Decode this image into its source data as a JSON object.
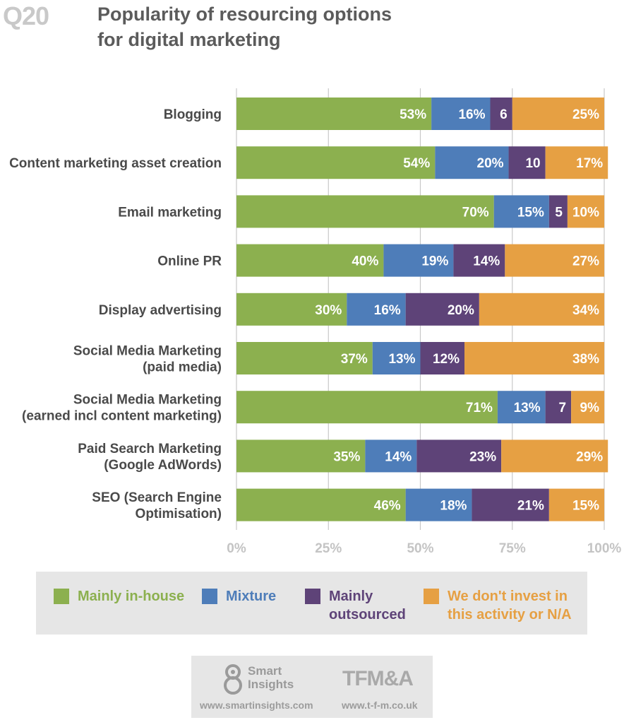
{
  "header": {
    "question_number": "Q20",
    "title_line1": "Popularity of resourcing options",
    "title_line2": "for digital marketing"
  },
  "chart_data": {
    "type": "bar",
    "orientation": "horizontal",
    "stacked": true,
    "categories": [
      [
        "Blogging"
      ],
      [
        "Content marketing asset creation"
      ],
      [
        "Email marketing"
      ],
      [
        "Online PR"
      ],
      [
        "Display advertising"
      ],
      [
        "Social Media Marketing",
        "(paid media)"
      ],
      [
        "Social Media Marketing",
        "(earned incl content marketing)"
      ],
      [
        "Paid Search Marketing",
        "(Google AdWords)"
      ],
      [
        "SEO (Search Engine",
        "Optimisation)"
      ]
    ],
    "series": [
      {
        "name": "Mainly in-house",
        "color": "#8cb04f",
        "values": [
          53,
          54,
          70,
          40,
          30,
          37,
          71,
          35,
          46
        ],
        "labels": [
          "53%",
          "54%",
          "70%",
          "40%",
          "30%",
          "37%",
          "71%",
          "35%",
          "46%"
        ]
      },
      {
        "name": "Mixture",
        "color": "#4e7db9",
        "values": [
          16,
          20,
          15,
          19,
          16,
          13,
          13,
          14,
          18
        ],
        "labels": [
          "16%",
          "20%",
          "15%",
          "19%",
          "16%",
          "13%",
          "13%",
          "14%",
          "18%"
        ]
      },
      {
        "name": "Mainly outsourced",
        "color": "#5e4378",
        "values": [
          6,
          10,
          5,
          14,
          20,
          12,
          7,
          23,
          21
        ],
        "labels": [
          "6",
          "10",
          "5",
          "14%",
          "20%",
          "12%",
          "7",
          "23%",
          "21%"
        ]
      },
      {
        "name": "We don't invest in this activity or N/A",
        "color": "#e6a043",
        "values": [
          25,
          17,
          10,
          27,
          34,
          38,
          9,
          29,
          15
        ],
        "labels": [
          "25%",
          "17%",
          "10%",
          "27%",
          "34%",
          "38%",
          "9%",
          "29%",
          "15%"
        ]
      }
    ],
    "xlim": [
      0,
      100
    ],
    "xticks": [
      "0%",
      "25%",
      "50%",
      "75%",
      "100%"
    ],
    "grid": true,
    "legend_position": "bottom"
  },
  "legend": [
    {
      "lines": [
        "Mainly in-house"
      ],
      "color": "#8cb04f"
    },
    {
      "lines": [
        "Mixture"
      ],
      "color": "#4e7db9"
    },
    {
      "lines": [
        "Mainly",
        "outsourced"
      ],
      "color": "#5e4378"
    },
    {
      "lines": [
        "We don't invest in",
        "this activity or N/A"
      ],
      "color": "#e6a043"
    }
  ],
  "footer": {
    "smart_insights_line1": "Smart",
    "smart_insights_line2": "Insights",
    "smart_insights_url": "www.smartinsights.com",
    "tfm_logo": "TFM&A",
    "tfm_url": "www.t-f-m.co.uk"
  }
}
